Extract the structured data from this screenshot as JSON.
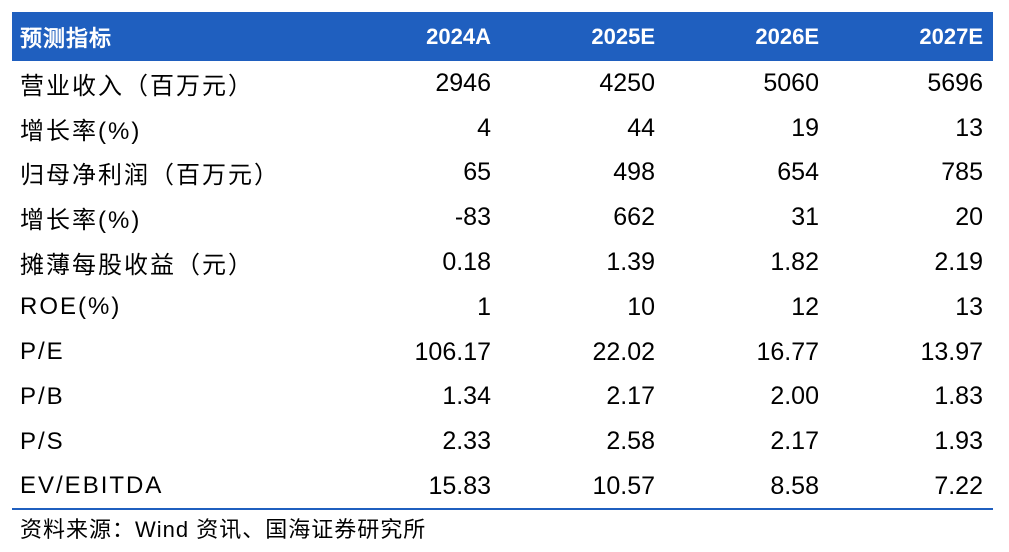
{
  "table": {
    "headers": [
      "预测指标",
      "2024A",
      "2025E",
      "2026E",
      "2027E"
    ],
    "rows": [
      [
        "营业收入（百万元）",
        "2946",
        "4250",
        "5060",
        "5696"
      ],
      [
        "增长率(%)",
        "4",
        "44",
        "19",
        "13"
      ],
      [
        "归母净利润（百万元）",
        "65",
        "498",
        "654",
        "785"
      ],
      [
        "增长率(%)",
        "-83",
        "662",
        "31",
        "20"
      ],
      [
        "摊薄每股收益（元）",
        "0.18",
        "1.39",
        "1.82",
        "2.19"
      ],
      [
        "ROE(%)",
        "1",
        "10",
        "12",
        "13"
      ],
      [
        "P/E",
        "106.17",
        "22.02",
        "16.77",
        "13.97"
      ],
      [
        "P/B",
        "1.34",
        "2.17",
        "2.00",
        "1.83"
      ],
      [
        "P/S",
        "2.33",
        "2.58",
        "2.17",
        "1.93"
      ],
      [
        "EV/EBITDA",
        "15.83",
        "10.57",
        "8.58",
        "7.22"
      ]
    ]
  },
  "source": "资料来源：Wind 资讯、国海证券研究所",
  "colors": {
    "header_bg": "#1f5fbf",
    "header_text": "#ffffff",
    "rule": "#1f5fbf"
  }
}
